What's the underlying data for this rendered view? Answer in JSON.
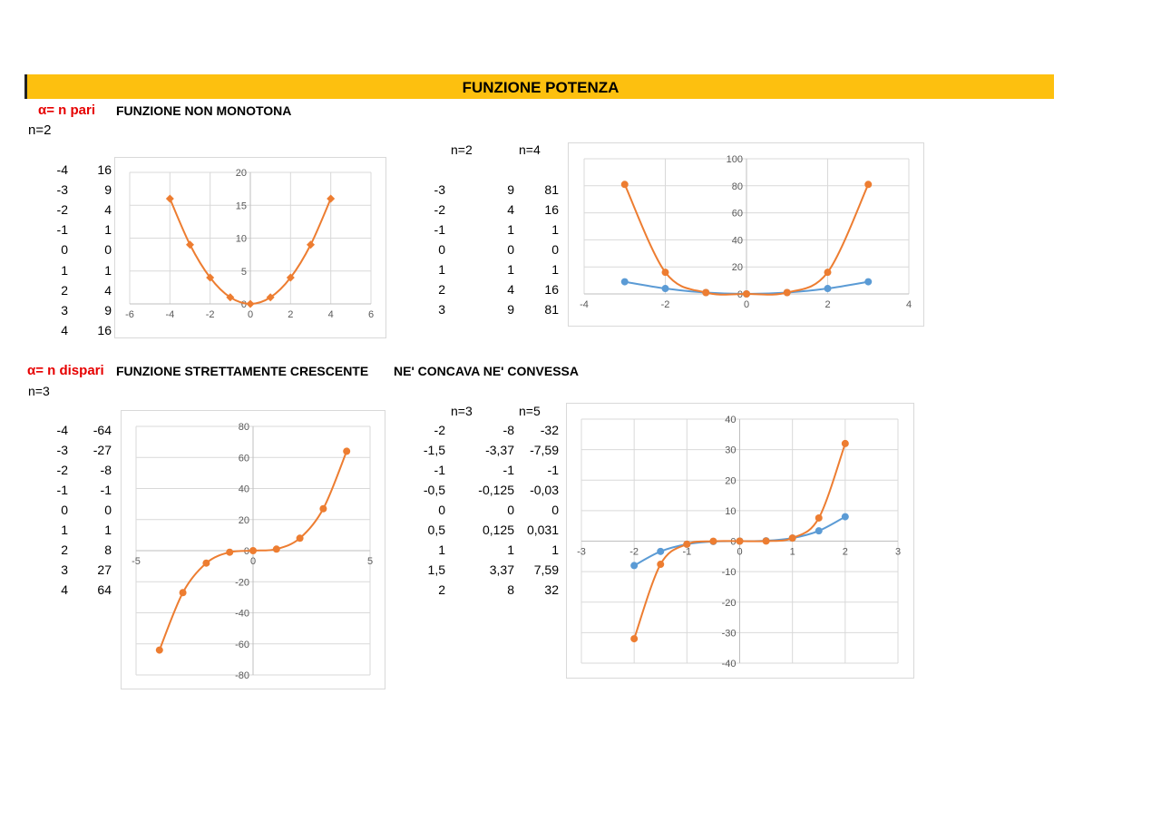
{
  "title": "FUNZIONE POTENZA",
  "section1": {
    "alpha_label": "α= n pari",
    "description": "FUNZIONE NON MONOTONA",
    "n_label": "n=2",
    "table": [
      [
        "-4",
        "16"
      ],
      [
        "-3",
        "9"
      ],
      [
        "-2",
        "4"
      ],
      [
        "-1",
        "1"
      ],
      [
        "0",
        "0"
      ],
      [
        "1",
        "1"
      ],
      [
        "2",
        "4"
      ],
      [
        "3",
        "9"
      ],
      [
        "4",
        "16"
      ]
    ],
    "table2_headers": [
      "n=2",
      "n=4"
    ],
    "table2": [
      [
        "-3",
        "9",
        "81"
      ],
      [
        "-2",
        "4",
        "16"
      ],
      [
        "-1",
        "1",
        "1"
      ],
      [
        "0",
        "0",
        "0"
      ],
      [
        "1",
        "1",
        "1"
      ],
      [
        "2",
        "4",
        "16"
      ],
      [
        "3",
        "9",
        "81"
      ]
    ]
  },
  "section2": {
    "alpha_label": "α= n dispari",
    "description": "FUNZIONE STRETTAMENTE CRESCENTE",
    "description2": "NE' CONCAVA NE' CONVESSA",
    "n_label": "n=3",
    "table": [
      [
        "-4",
        "-64"
      ],
      [
        "-3",
        "-27"
      ],
      [
        "-2",
        "-8"
      ],
      [
        "-1",
        "-1"
      ],
      [
        "0",
        "0"
      ],
      [
        "1",
        "1"
      ],
      [
        "2",
        "8"
      ],
      [
        "3",
        "27"
      ],
      [
        "4",
        "64"
      ]
    ],
    "table2_headers": [
      "n=3",
      "n=5"
    ],
    "table2": [
      [
        "-2",
        "-8",
        "-32"
      ],
      [
        "-1,5",
        "-3,37",
        "-7,59"
      ],
      [
        "-1",
        "-1",
        "-1"
      ],
      [
        "-0,5",
        "-0,125",
        "-0,03"
      ],
      [
        "0",
        "0",
        "0"
      ],
      [
        "0,5",
        "0,125",
        "0,031"
      ],
      [
        "1",
        "1",
        "1"
      ],
      [
        "1,5",
        "3,37",
        "7,59"
      ],
      [
        "2",
        "8",
        "32"
      ]
    ]
  },
  "colors": {
    "orange": "#ed7d31",
    "blue": "#5b9bd5",
    "header": "#fdc00f",
    "red": "#e60000"
  },
  "chart_data": [
    {
      "type": "scatter",
      "marker": "diamond",
      "smooth": true,
      "xlim": [
        -6,
        6
      ],
      "ylim": [
        0,
        20
      ],
      "xticks": [
        -6,
        -4,
        -2,
        0,
        2,
        4,
        6
      ],
      "yticks": [
        0,
        5,
        10,
        15,
        20
      ],
      "series": [
        {
          "x": [
            -4,
            -3,
            -2,
            -1,
            0,
            1,
            2,
            3,
            4
          ],
          "y": [
            16,
            9,
            4,
            1,
            0,
            1,
            4,
            9,
            16
          ],
          "color": "#ed7d31"
        }
      ]
    },
    {
      "type": "scatter",
      "marker": "circle",
      "smooth": true,
      "xlim": [
        -4,
        4
      ],
      "ylim": [
        0,
        100
      ],
      "xticks": [
        -4,
        -2,
        0,
        2,
        4
      ],
      "yticks": [
        0,
        20,
        40,
        60,
        80,
        100
      ],
      "series": [
        {
          "x": [
            -3,
            -2,
            -1,
            0,
            1,
            2,
            3
          ],
          "y": [
            9,
            4,
            1,
            0,
            1,
            4,
            9
          ],
          "color": "#5b9bd5"
        },
        {
          "x": [
            -3,
            -2,
            -1,
            0,
            1,
            2,
            3
          ],
          "y": [
            81,
            16,
            1,
            0,
            1,
            16,
            81
          ],
          "color": "#ed7d31"
        }
      ]
    },
    {
      "type": "scatter",
      "marker": "circle",
      "smooth": true,
      "xlim": [
        -5,
        5
      ],
      "ylim": [
        -80,
        80
      ],
      "xticks": [
        -5,
        0,
        5
      ],
      "yticks": [
        -80,
        -60,
        -40,
        -20,
        0,
        20,
        40,
        60,
        80
      ],
      "series": [
        {
          "x": [
            -4,
            -3,
            -2,
            -1,
            0,
            1,
            2,
            3,
            4
          ],
          "y": [
            -64,
            -27,
            -8,
            -1,
            0,
            1,
            8,
            27,
            64
          ],
          "color": "#ed7d31"
        }
      ]
    },
    {
      "type": "scatter",
      "marker": "circle",
      "smooth": true,
      "xlim": [
        -3,
        3
      ],
      "ylim": [
        -40,
        40
      ],
      "xticks": [
        -3,
        -2,
        -1,
        0,
        1,
        2,
        3
      ],
      "yticks": [
        -40,
        -30,
        -20,
        -10,
        0,
        10,
        20,
        30,
        40
      ],
      "series": [
        {
          "x": [
            -2,
            -1.5,
            -1,
            -0.5,
            0,
            0.5,
            1,
            1.5,
            2
          ],
          "y": [
            -8,
            -3.37,
            -1,
            -0.125,
            0,
            0.125,
            1,
            3.37,
            8
          ],
          "color": "#5b9bd5"
        },
        {
          "x": [
            -2,
            -1.5,
            -1,
            -0.5,
            0,
            0.5,
            1,
            1.5,
            2
          ],
          "y": [
            -32,
            -7.59,
            -1,
            -0.03,
            0,
            0.031,
            1,
            7.59,
            32
          ],
          "color": "#ed7d31"
        }
      ]
    }
  ]
}
